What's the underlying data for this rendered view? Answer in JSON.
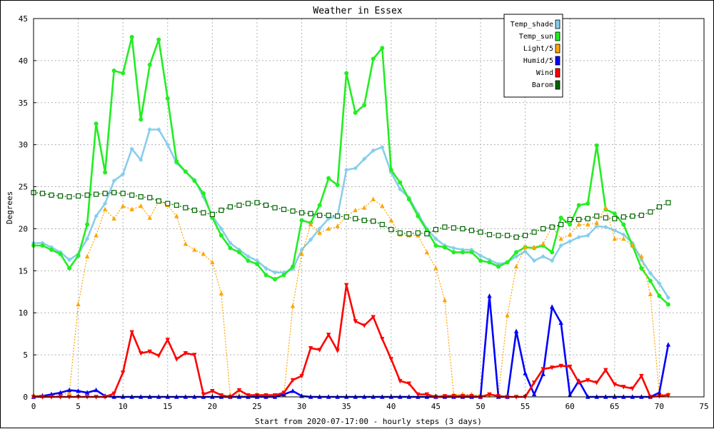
{
  "chart_data": {
    "type": "line",
    "title": "Weather in Essex",
    "xlabel": "Start from 2020-07-17:00 - hourly steps (3 days)",
    "ylabel": "Degrees",
    "xlim": [
      0,
      75
    ],
    "ylim": [
      0,
      45
    ],
    "xticks": [
      0,
      5,
      10,
      15,
      20,
      25,
      30,
      35,
      40,
      45,
      50,
      55,
      60,
      65,
      70,
      75
    ],
    "yticks": [
      0,
      5,
      10,
      15,
      20,
      25,
      30,
      35,
      40,
      45
    ],
    "grid": true,
    "legend_position": "top-right",
    "series": [
      {
        "name": "Temp_shade",
        "color": "#87ceeb",
        "marker": "diamond",
        "dash": "",
        "values": [
          18.3,
          18.3,
          17.8,
          17.2,
          16.3,
          17.0,
          18.8,
          21.5,
          23.0,
          25.7,
          26.5,
          29.5,
          28.2,
          31.8,
          31.8,
          30.0,
          27.8,
          26.8,
          25.8,
          23.8,
          21.5,
          20.0,
          18.3,
          17.5,
          16.7,
          16.2,
          15.3,
          14.8,
          14.8,
          15.2,
          17.5,
          18.7,
          20.0,
          21.2,
          21.5,
          27.0,
          27.2,
          28.3,
          29.3,
          29.7,
          26.7,
          24.7,
          23.7,
          21.8,
          20.0,
          18.8,
          18.0,
          17.7,
          17.5,
          17.5,
          16.8,
          16.3,
          15.8,
          16.0,
          16.7,
          17.3,
          16.2,
          16.7,
          16.2,
          18.0,
          18.5,
          19.0,
          19.2,
          20.3,
          20.2,
          19.8,
          19.3,
          18.3,
          16.3,
          14.7,
          13.5,
          11.8
        ]
      },
      {
        "name": "Temp_sun",
        "color": "#22ee22",
        "marker": "circle",
        "dash": "",
        "values": [
          18.0,
          18.0,
          17.5,
          17.0,
          15.3,
          16.8,
          20.5,
          32.5,
          26.7,
          38.8,
          38.5,
          42.8,
          33.0,
          39.5,
          42.5,
          35.5,
          28.0,
          26.8,
          25.7,
          24.2,
          21.3,
          19.2,
          17.7,
          17.2,
          16.2,
          15.8,
          14.5,
          14.0,
          14.5,
          15.5,
          21.0,
          20.7,
          22.8,
          26.0,
          25.2,
          38.5,
          33.8,
          34.7,
          40.2,
          41.5,
          27.0,
          25.5,
          23.5,
          21.5,
          19.8,
          18.0,
          17.8,
          17.2,
          17.2,
          17.2,
          16.2,
          16.0,
          15.5,
          16.0,
          17.2,
          17.8,
          17.7,
          18.0,
          17.2,
          21.3,
          20.5,
          22.8,
          23.0,
          29.9,
          22.3,
          21.8,
          20.5,
          18.0,
          15.3,
          13.8,
          12.0,
          11.0
        ]
      },
      {
        "name": "Light/5",
        "color": "#ffa500",
        "marker": "triangle",
        "dash": "2,2",
        "values": [
          0.2,
          0.2,
          0.2,
          0.2,
          0.5,
          11.0,
          16.7,
          19.2,
          22.3,
          21.2,
          22.7,
          22.3,
          22.7,
          21.3,
          23.3,
          22.8,
          21.5,
          18.2,
          17.5,
          17.0,
          16.0,
          12.3,
          0.2,
          0.2,
          0.2,
          0.3,
          0.2,
          0.2,
          0.2,
          10.8,
          17.0,
          20.5,
          19.5,
          20.0,
          20.3,
          21.5,
          22.2,
          22.5,
          23.5,
          22.7,
          21.0,
          19.3,
          19.2,
          19.2,
          17.2,
          15.3,
          11.5,
          0.3,
          0.3,
          0.3,
          0.2,
          0.2,
          0.2,
          9.7,
          15.5,
          17.8,
          17.8,
          18.2,
          20.2,
          18.8,
          19.3,
          20.5,
          20.5,
          20.7,
          22.5,
          18.8,
          18.8,
          18.0,
          16.7,
          12.2,
          0.3,
          0.3
        ]
      },
      {
        "name": "Humid/5",
        "color": "#0000ff",
        "marker": "triangle",
        "dash": "",
        "values": [
          0.0,
          0.1,
          0.3,
          0.5,
          0.8,
          0.7,
          0.5,
          0.8,
          0.1,
          0.0,
          0.0,
          0.0,
          0.0,
          0.0,
          0.0,
          0.0,
          0.0,
          0.0,
          0.0,
          0.0,
          0.0,
          0.0,
          0.0,
          0.0,
          0.0,
          0.0,
          0.0,
          0.0,
          0.3,
          0.7,
          0.1,
          0.0,
          0.0,
          0.0,
          0.0,
          0.0,
          0.0,
          0.0,
          0.0,
          0.0,
          0.0,
          0.0,
          0.0,
          0.0,
          0.0,
          0.0,
          0.0,
          0.0,
          0.0,
          0.0,
          0.0,
          12.0,
          0.0,
          0.0,
          7.8,
          2.8,
          0.3,
          2.7,
          10.7,
          8.8,
          0.2,
          1.9,
          0.0,
          0.0,
          0.0,
          0.0,
          0.0,
          0.0,
          0.0,
          0.0,
          0.5,
          6.2
        ]
      },
      {
        "name": "Wind",
        "color": "#ff0000",
        "marker": "triangle-down",
        "dash": "",
        "values": [
          0.0,
          0.0,
          0.0,
          0.0,
          0.0,
          0.0,
          0.0,
          0.0,
          0.0,
          0.4,
          2.9,
          7.7,
          5.2,
          5.4,
          4.9,
          6.8,
          4.5,
          5.2,
          5.0,
          0.3,
          0.7,
          0.2,
          0.0,
          0.8,
          0.2,
          0.2,
          0.2,
          0.2,
          0.5,
          2.0,
          2.5,
          5.8,
          5.6,
          7.4,
          5.5,
          13.3,
          9.0,
          8.5,
          9.5,
          6.9,
          4.5,
          1.9,
          1.6,
          0.3,
          0.3,
          0.0,
          0.1,
          0.1,
          0.1,
          0.1,
          0.0,
          0.3,
          0.1,
          0.0,
          0.0,
          0.0,
          1.7,
          3.3,
          3.5,
          3.7,
          3.6,
          1.7,
          2.0,
          1.7,
          3.2,
          1.5,
          1.2,
          1.0,
          2.5,
          0.0,
          0.1,
          0.2
        ]
      },
      {
        "name": "Barom",
        "color": "#006400",
        "marker": "square",
        "dash": "2,2",
        "values": [
          24.3,
          24.2,
          24.0,
          23.9,
          23.8,
          23.9,
          24.0,
          24.1,
          24.2,
          24.3,
          24.2,
          24.0,
          23.8,
          23.7,
          23.3,
          23.0,
          22.8,
          22.5,
          22.2,
          21.9,
          21.7,
          22.2,
          22.6,
          22.8,
          23.0,
          23.1,
          22.8,
          22.5,
          22.3,
          22.1,
          21.9,
          21.8,
          21.6,
          21.6,
          21.5,
          21.4,
          21.2,
          21.0,
          20.9,
          20.5,
          19.9,
          19.5,
          19.4,
          19.5,
          19.4,
          19.9,
          20.2,
          20.1,
          20.0,
          19.8,
          19.6,
          19.3,
          19.2,
          19.2,
          19.0,
          19.2,
          19.6,
          20.0,
          20.2,
          20.5,
          21.1,
          21.1,
          21.2,
          21.5,
          21.3,
          21.2,
          21.4,
          21.5,
          21.6,
          22.0,
          22.6,
          23.1
        ]
      }
    ]
  }
}
